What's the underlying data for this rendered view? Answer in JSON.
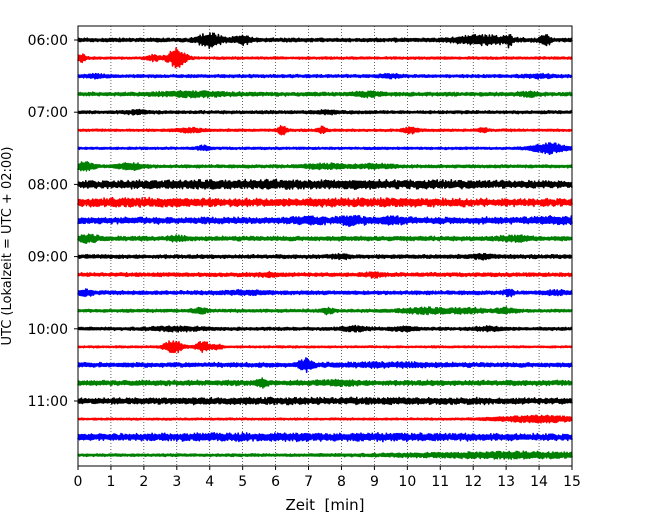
{
  "chart_data": {
    "type": "line",
    "title": "",
    "xlabel": "Zeit  [min]",
    "ylabel": "UTC (Lokalzeit = UTC + 02:00)",
    "xlim": [
      0,
      15
    ],
    "x_ticks": [
      "0",
      "1",
      "2",
      "3",
      "4",
      "5",
      "6",
      "7",
      "8",
      "9",
      "10",
      "11",
      "12",
      "13",
      "14",
      "15"
    ],
    "y_tick_labels": [
      "06:00",
      "07:00",
      "08:00",
      "09:00",
      "10:00",
      "11:00"
    ],
    "grid": "vertical dotted lines at each minute",
    "trace_interval_min": 15,
    "trace_color_cycle": [
      "#000000",
      "#ff0000",
      "#0000ff",
      "#008000"
    ],
    "traces": [
      {
        "start_utc": "06:00",
        "color": "#000000",
        "base_amp": 0.5,
        "events": [
          {
            "t": 4.0,
            "amp": 2.2,
            "w": 0.25
          },
          {
            "t": 5.0,
            "amp": 1.2,
            "w": 0.2
          },
          {
            "t": 12.3,
            "amp": 1.3,
            "w": 0.6
          },
          {
            "t": 13.1,
            "amp": 1.6,
            "w": 0.05
          },
          {
            "t": 14.2,
            "amp": 1.8,
            "w": 0.1
          }
        ]
      },
      {
        "start_utc": "06:15",
        "color": "#ff0000",
        "base_amp": 0.3,
        "events": [
          {
            "t": 0.1,
            "amp": 1.2,
            "w": 0.1
          },
          {
            "t": 2.3,
            "amp": 0.8,
            "w": 0.15
          },
          {
            "t": 3.0,
            "amp": 3.0,
            "w": 0.2
          }
        ]
      },
      {
        "start_utc": "06:30",
        "color": "#0000ff",
        "base_amp": 0.4,
        "events": [
          {
            "t": 0.5,
            "amp": 0.6,
            "w": 0.2
          },
          {
            "t": 9.5,
            "amp": 0.5,
            "w": 0.2
          },
          {
            "t": 14.0,
            "amp": 0.5,
            "w": 0.3
          }
        ]
      },
      {
        "start_utc": "06:45",
        "color": "#008000",
        "base_amp": 0.5,
        "events": [
          {
            "t": 3.5,
            "amp": 0.6,
            "w": 0.8
          },
          {
            "t": 8.8,
            "amp": 0.6,
            "w": 0.3
          },
          {
            "t": 13.7,
            "amp": 0.6,
            "w": 0.2
          }
        ]
      },
      {
        "start_utc": "07:00",
        "color": "#000000",
        "base_amp": 0.4,
        "events": [
          {
            "t": 1.8,
            "amp": 0.5,
            "w": 0.2
          },
          {
            "t": 7.5,
            "amp": 0.4,
            "w": 0.3
          }
        ]
      },
      {
        "start_utc": "07:15",
        "color": "#ff0000",
        "base_amp": 0.3,
        "events": [
          {
            "t": 3.4,
            "amp": 0.6,
            "w": 0.3
          },
          {
            "t": 6.2,
            "amp": 1.2,
            "w": 0.1
          },
          {
            "t": 7.4,
            "amp": 0.9,
            "w": 0.1
          },
          {
            "t": 10.1,
            "amp": 0.9,
            "w": 0.15
          },
          {
            "t": 12.3,
            "amp": 0.6,
            "w": 0.1
          }
        ]
      },
      {
        "start_utc": "07:30",
        "color": "#0000ff",
        "base_amp": 0.3,
        "events": [
          {
            "t": 3.8,
            "amp": 0.6,
            "w": 0.15
          },
          {
            "t": 14.3,
            "amp": 1.6,
            "w": 0.35
          }
        ]
      },
      {
        "start_utc": "07:45",
        "color": "#008000",
        "base_amp": 0.4,
        "events": [
          {
            "t": 0.2,
            "amp": 1.2,
            "w": 0.2
          },
          {
            "t": 1.6,
            "amp": 0.9,
            "w": 0.3
          },
          {
            "t": 7.5,
            "amp": 0.6,
            "w": 0.5
          },
          {
            "t": 9.0,
            "amp": 0.6,
            "w": 0.4
          }
        ]
      },
      {
        "start_utc": "08:00",
        "color": "#000000",
        "base_amp": 0.9,
        "events": [
          {
            "t": 3.0,
            "amp": 0.4,
            "w": 2.0
          },
          {
            "t": 7.0,
            "amp": 0.4,
            "w": 2.0
          },
          {
            "t": 11.0,
            "amp": 0.3,
            "w": 2.0
          }
        ]
      },
      {
        "start_utc": "08:15",
        "color": "#ff0000",
        "base_amp": 1.0,
        "events": [
          {
            "t": 2.0,
            "amp": 0.4,
            "w": 1.5
          },
          {
            "t": 9.0,
            "amp": 0.3,
            "w": 2.0
          }
        ]
      },
      {
        "start_utc": "08:30",
        "color": "#0000ff",
        "base_amp": 0.9,
        "events": [
          {
            "t": 7.0,
            "amp": 0.8,
            "w": 0.3
          },
          {
            "t": 8.3,
            "amp": 0.8,
            "w": 0.3
          },
          {
            "t": 9.5,
            "amp": 0.6,
            "w": 0.3
          },
          {
            "t": 14.5,
            "amp": 0.6,
            "w": 0.4
          }
        ]
      },
      {
        "start_utc": "08:45",
        "color": "#008000",
        "base_amp": 0.6,
        "events": [
          {
            "t": 0.3,
            "amp": 0.9,
            "w": 0.2
          },
          {
            "t": 3.0,
            "amp": 0.5,
            "w": 0.2
          },
          {
            "t": 13.3,
            "amp": 0.6,
            "w": 0.3
          }
        ]
      },
      {
        "start_utc": "09:00",
        "color": "#000000",
        "base_amp": 0.5,
        "events": [
          {
            "t": 8.0,
            "amp": 0.5,
            "w": 0.2
          },
          {
            "t": 12.3,
            "amp": 0.6,
            "w": 0.2
          }
        ]
      },
      {
        "start_utc": "09:15",
        "color": "#ff0000",
        "base_amp": 0.5,
        "events": [
          {
            "t": 5.8,
            "amp": 0.5,
            "w": 0.2
          },
          {
            "t": 9.0,
            "amp": 0.5,
            "w": 0.2
          }
        ]
      },
      {
        "start_utc": "09:30",
        "color": "#0000ff",
        "base_amp": 0.5,
        "events": [
          {
            "t": 0.2,
            "amp": 0.8,
            "w": 0.2
          },
          {
            "t": 5.0,
            "amp": 0.4,
            "w": 0.5
          },
          {
            "t": 13.1,
            "amp": 0.8,
            "w": 0.1
          },
          {
            "t": 14.5,
            "amp": 0.5,
            "w": 0.2
          }
        ]
      },
      {
        "start_utc": "09:45",
        "color": "#008000",
        "base_amp": 0.4,
        "events": [
          {
            "t": 3.7,
            "amp": 0.8,
            "w": 0.15
          },
          {
            "t": 7.6,
            "amp": 1.0,
            "w": 0.1
          },
          {
            "t": 10.5,
            "amp": 0.8,
            "w": 0.5
          },
          {
            "t": 11.8,
            "amp": 0.7,
            "w": 0.4
          },
          {
            "t": 13.0,
            "amp": 0.7,
            "w": 0.2
          }
        ]
      },
      {
        "start_utc": "10:00",
        "color": "#000000",
        "base_amp": 0.4,
        "events": [
          {
            "t": 3.0,
            "amp": 0.5,
            "w": 0.6
          },
          {
            "t": 8.4,
            "amp": 0.6,
            "w": 0.3
          },
          {
            "t": 9.9,
            "amp": 0.5,
            "w": 0.3
          },
          {
            "t": 12.5,
            "amp": 0.5,
            "w": 0.3
          }
        ]
      },
      {
        "start_utc": "10:15",
        "color": "#ff0000",
        "base_amp": 0.25,
        "events": [
          {
            "t": 2.9,
            "amp": 2.0,
            "w": 0.2
          },
          {
            "t": 3.8,
            "amp": 1.6,
            "w": 0.15
          },
          {
            "t": 4.2,
            "amp": 0.6,
            "w": 0.15
          }
        ]
      },
      {
        "start_utc": "10:30",
        "color": "#0000ff",
        "base_amp": 0.6,
        "events": [
          {
            "t": 6.9,
            "amp": 1.6,
            "w": 0.15
          },
          {
            "t": 9.5,
            "amp": 0.4,
            "w": 1.0
          }
        ]
      },
      {
        "start_utc": "10:45",
        "color": "#008000",
        "base_amp": 0.7,
        "events": [
          {
            "t": 5.6,
            "amp": 1.0,
            "w": 0.1
          },
          {
            "t": 8.0,
            "amp": 0.4,
            "w": 0.4
          }
        ]
      },
      {
        "start_utc": "11:00",
        "color": "#000000",
        "base_amp": 0.8,
        "events": [
          {
            "t": 7.5,
            "amp": 0.2,
            "w": 4.0
          }
        ]
      },
      {
        "start_utc": "11:15",
        "color": "#ff0000",
        "base_amp": 0.25,
        "events": [
          {
            "t": 14.0,
            "amp": 1.0,
            "w": 0.9
          }
        ]
      },
      {
        "start_utc": "11:30",
        "color": "#0000ff",
        "base_amp": 0.9,
        "events": [
          {
            "t": 5.0,
            "amp": 0.3,
            "w": 3.0
          },
          {
            "t": 10.0,
            "amp": 0.2,
            "w": 2.0
          }
        ]
      },
      {
        "start_utc": "11:45",
        "color": "#008000",
        "base_amp": 0.35,
        "events": [
          {
            "t": 12.0,
            "amp": 0.5,
            "w": 2.0
          },
          {
            "t": 14.0,
            "amp": 0.5,
            "w": 1.5
          }
        ]
      }
    ]
  }
}
